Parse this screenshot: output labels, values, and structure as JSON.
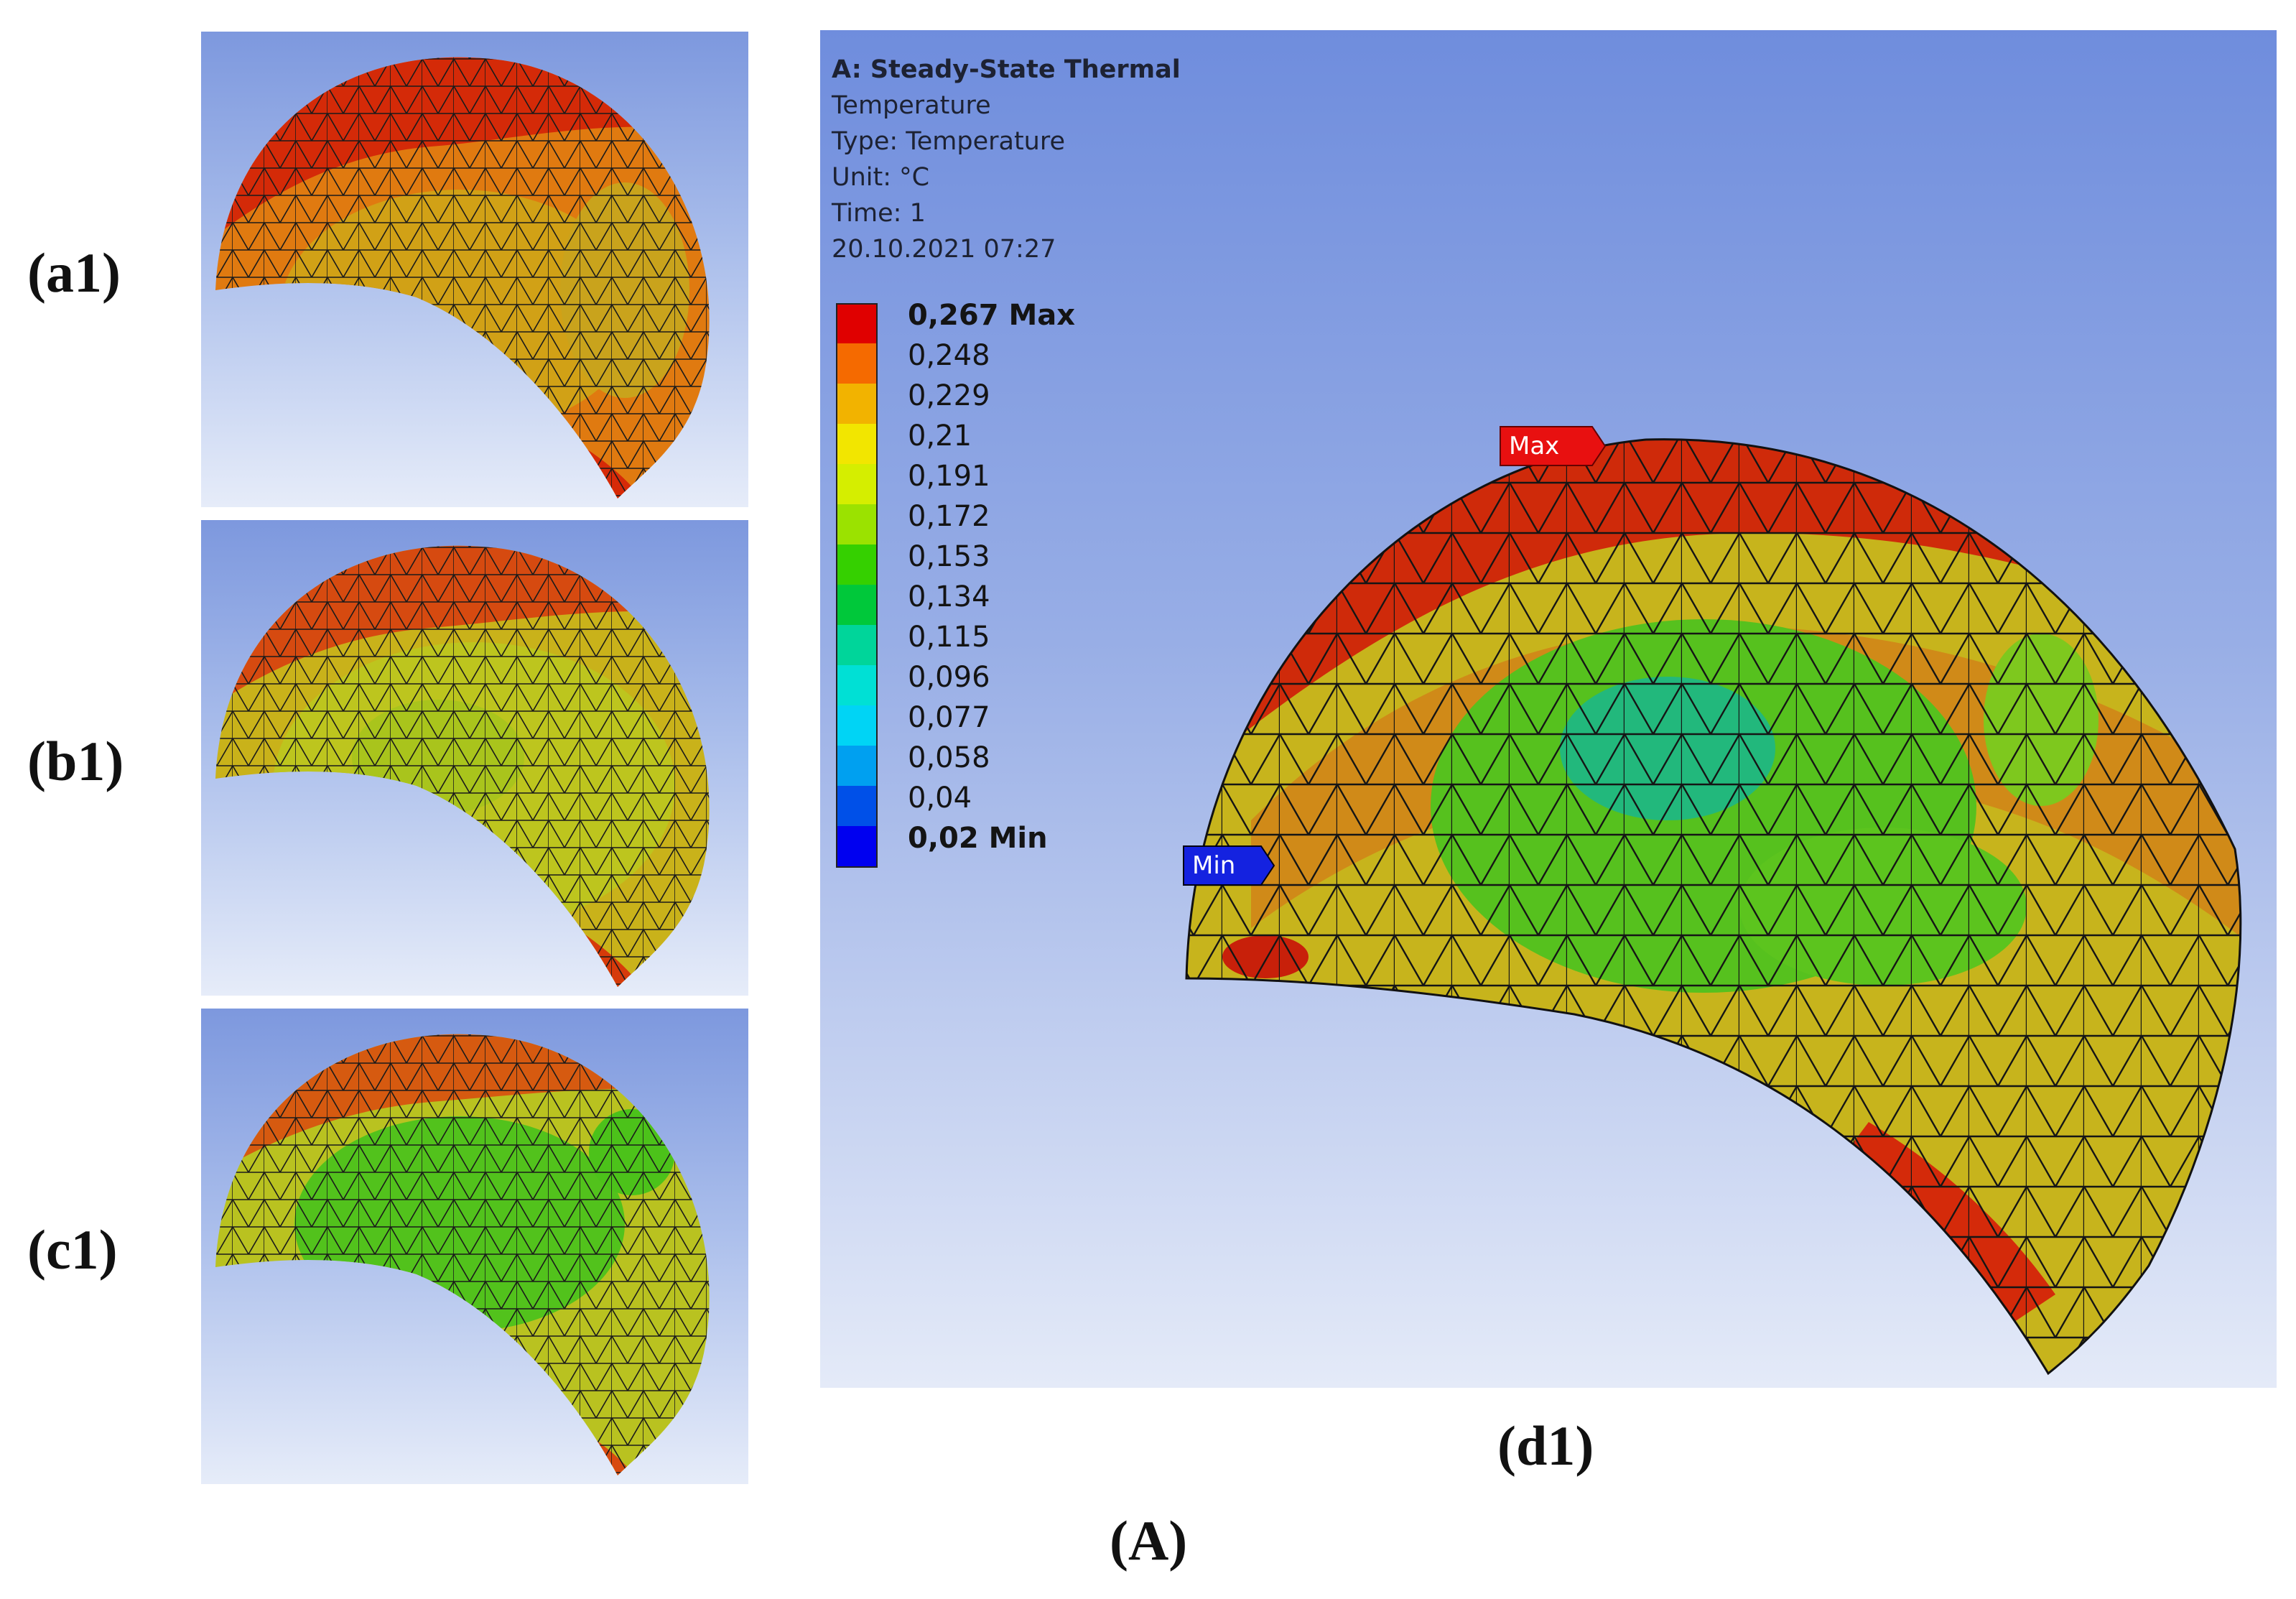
{
  "panels": {
    "a1": "(a1)",
    "b1": "(b1)",
    "c1": "(c1)",
    "d1": "(d1)",
    "group": "(A)"
  },
  "main": {
    "title": "A: Steady-State Thermal",
    "line1": "Temperature",
    "line2": "Type: Temperature",
    "line3": "Unit: °C",
    "line4": "Time: 1",
    "line5": "20.10.2021 07:27",
    "max_tag": "Max",
    "min_tag": "Min"
  },
  "legend": {
    "entries": [
      {
        "label": "0,267 Max",
        "color": "#e00000"
      },
      {
        "label": "0,248",
        "color": "#f56a00"
      },
      {
        "label": "0,229",
        "color": "#f2b300"
      },
      {
        "label": "0,21",
        "color": "#f2e600"
      },
      {
        "label": "0,191",
        "color": "#d5ee00"
      },
      {
        "label": "0,172",
        "color": "#9be200"
      },
      {
        "label": "0,153",
        "color": "#35d000"
      },
      {
        "label": "0,134",
        "color": "#00c83a"
      },
      {
        "label": "0,115",
        "color": "#00d59a"
      },
      {
        "label": "0,096",
        "color": "#00e0d5"
      },
      {
        "label": "0,077",
        "color": "#00d4f5"
      },
      {
        "label": "0,058",
        "color": "#00a0f0"
      },
      {
        "label": "0,04",
        "color": "#0050e8"
      },
      {
        "label": "0,02 Min",
        "color": "#0000f0"
      }
    ]
  },
  "colors": {
    "max_tag": "#e81010",
    "min_tag": "#1422e0"
  }
}
